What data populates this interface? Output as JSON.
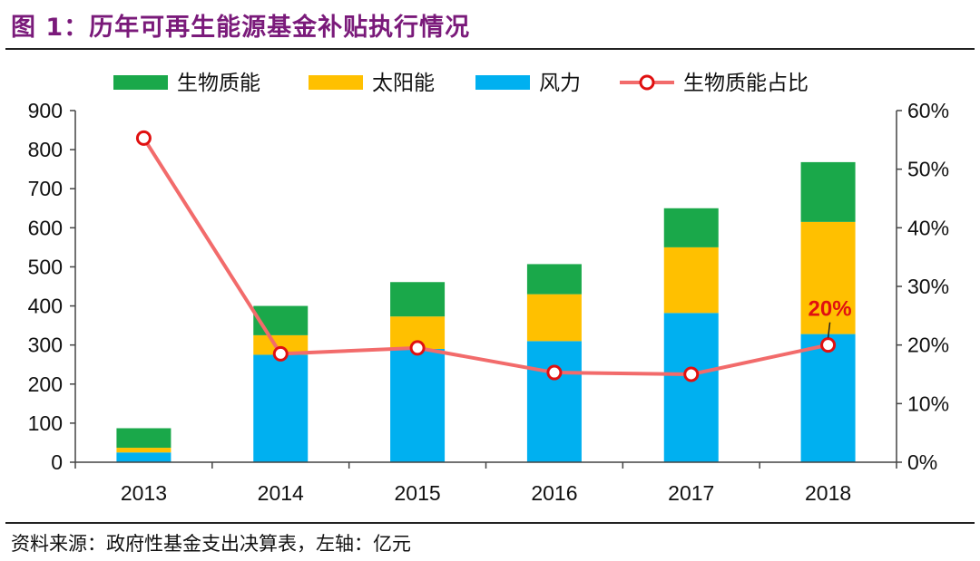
{
  "header": {
    "title": "图 1：历年可再生能源基金补贴执行情况"
  },
  "footer": {
    "source": "资料来源：政府性基金支出决算表，左轴：亿元"
  },
  "colors": {
    "biomass": "#1aa84a",
    "solar": "#ffc000",
    "wind": "#00b0f0",
    "ratio_line": "#f26b6b",
    "ratio_marker": "#e01010"
  },
  "chart_data": {
    "type": "bar",
    "stacked": true,
    "categories": [
      "2013",
      "2014",
      "2015",
      "2016",
      "2017",
      "2018"
    ],
    "series": [
      {
        "name": "风力",
        "axis": "left",
        "values": [
          25,
          275,
          290,
          310,
          382,
          328
        ]
      },
      {
        "name": "太阳能",
        "axis": "left",
        "values": [
          12,
          50,
          83,
          120,
          168,
          287
        ]
      },
      {
        "name": "生物质能",
        "axis": "left",
        "values": [
          50,
          75,
          88,
          77,
          100,
          153
        ]
      },
      {
        "name": "生物质能占比",
        "type": "line",
        "axis": "right",
        "values": [
          0.553,
          0.185,
          0.195,
          0.153,
          0.15,
          0.2
        ]
      }
    ],
    "legend_order": [
      "生物质能",
      "太阳能",
      "风力",
      "生物质能占比"
    ],
    "legend_position": "top",
    "yaxis_left": {
      "min": 0,
      "max": 900,
      "ticks": [
        "0",
        "100",
        "200",
        "300",
        "400",
        "500",
        "600",
        "700",
        "800",
        "900"
      ]
    },
    "yaxis_right": {
      "min": 0,
      "max": 0.6,
      "ticks": [
        "0%",
        "10%",
        "20%",
        "30%",
        "40%",
        "50%",
        "60%"
      ]
    },
    "annotation": {
      "category": "2018",
      "text": "20%"
    },
    "grid": false
  }
}
